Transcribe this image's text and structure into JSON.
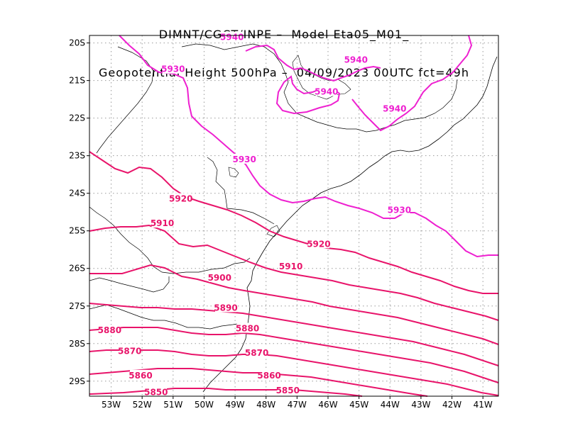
{
  "title": {
    "line1": "DIMNT/CGCT/INPE –  Model Eta05_M01_",
    "line2": "Geopotential Height 500hPa –  04/09/2023 00UTC fct=49h"
  },
  "colors": {
    "contour_upper": "#ee20d0",
    "contour_lower": "#e8146a",
    "coast": "#000000",
    "grid": "#9a9a9a"
  },
  "axes": {
    "lat_labels": [
      "20S",
      "21S",
      "22S",
      "23S",
      "24S",
      "25S",
      "26S",
      "27S",
      "28S",
      "29S"
    ],
    "lon_labels": [
      "53W",
      "52W",
      "51W",
      "50W",
      "49W",
      "48W",
      "47W",
      "46W",
      "45W",
      "44W",
      "43W",
      "42W",
      "41W"
    ]
  },
  "map": {
    "projection": "lat-lon",
    "variable": "geopotential height 500hPa",
    "lon_range": [
      -53.7,
      -40.5
    ],
    "lat_range": [
      -29.4,
      -19.8
    ],
    "grid": "dotted",
    "contour_labels": [
      {
        "text": "5940",
        "lon": -49.1,
        "lat": -19.85
      },
      {
        "text": "5940",
        "lon": -45.1,
        "lat": -20.45
      },
      {
        "text": "5940",
        "lon": -46.05,
        "lat": -21.3
      },
      {
        "text": "5940",
        "lon": -43.85,
        "lat": -21.75
      },
      {
        "text": "5930",
        "lon": -51.0,
        "lat": -20.7
      },
      {
        "text": "5930",
        "lon": -48.7,
        "lat": -23.1
      },
      {
        "text": "5930",
        "lon": -43.7,
        "lat": -24.45
      },
      {
        "text": "5920",
        "lon": -50.75,
        "lat": -24.15
      },
      {
        "text": "5920",
        "lon": -46.3,
        "lat": -25.35
      },
      {
        "text": "5910",
        "lon": -51.35,
        "lat": -24.8
      },
      {
        "text": "5910",
        "lon": -47.2,
        "lat": -25.95
      },
      {
        "text": "5900",
        "lon": -49.5,
        "lat": -26.25
      },
      {
        "text": "5890",
        "lon": -49.3,
        "lat": -27.05
      },
      {
        "text": "5880",
        "lon": -53.05,
        "lat": -27.65
      },
      {
        "text": "5880",
        "lon": -48.6,
        "lat": -27.6
      },
      {
        "text": "5870",
        "lon": -52.4,
        "lat": -28.2
      },
      {
        "text": "5870",
        "lon": -48.3,
        "lat": -28.25
      },
      {
        "text": "5860",
        "lon": -52.05,
        "lat": -28.85
      },
      {
        "text": "5860",
        "lon": -47.9,
        "lat": -28.85
      },
      {
        "text": "5850",
        "lon": -51.55,
        "lat": -29.3
      },
      {
        "text": "5850",
        "lon": -47.3,
        "lat": -29.25
      }
    ]
  }
}
